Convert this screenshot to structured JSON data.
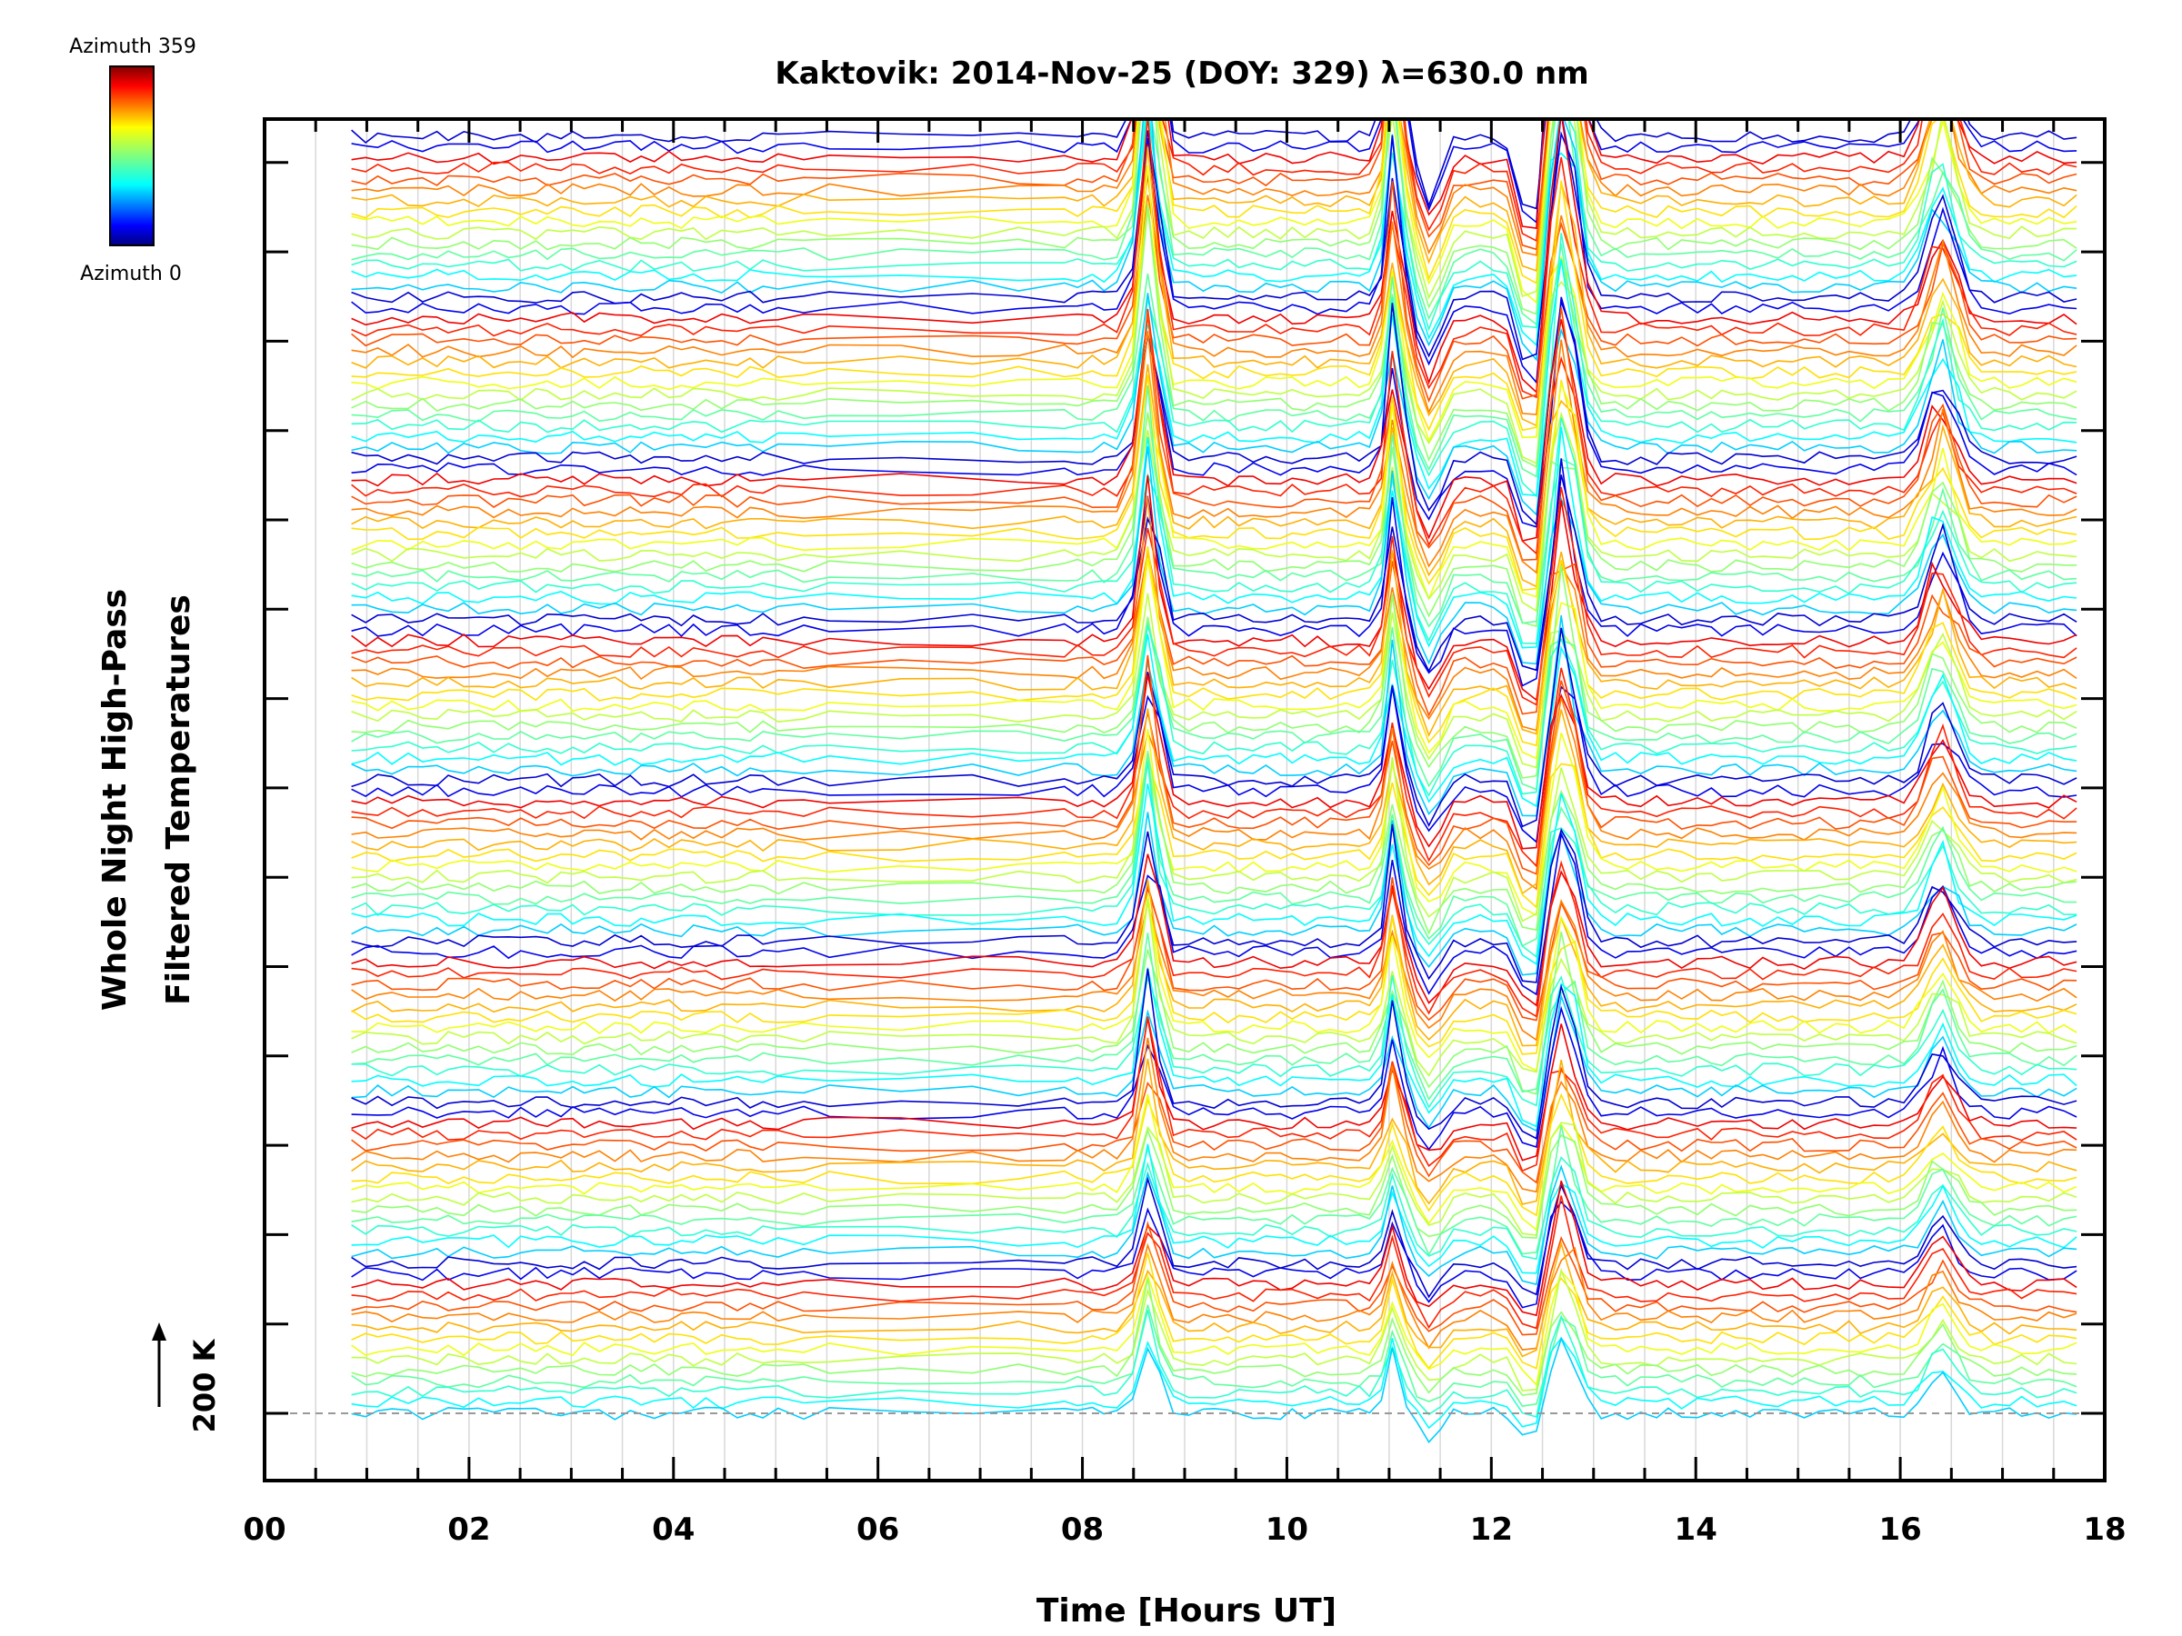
{
  "chart_data": {
    "type": "line",
    "title": "Kaktovik: 2014-Nov-25 (DOY: 329) λ=630.0 nm",
    "xlabel": "Time [Hours UT]",
    "ylabel_line1": "Whole Night High-Pass",
    "ylabel_line2": "Filtered Temperatures",
    "xlim": [
      0,
      18
    ],
    "x_ticks": [
      "00",
      "02",
      "04",
      "06",
      "08",
      "10",
      "12",
      "14",
      "16",
      "18"
    ],
    "minor_tick_step_hours": 0.5,
    "data_time_range_hours": [
      0.85,
      17.85
    ],
    "y_scale_bar": "200 K",
    "baseline_dashed": true,
    "vertical_gridlines_every_hours": 0.5,
    "colorbar": {
      "top_label": "Azimuth 359",
      "bottom_label": "Azimuth 0",
      "colormap": "jet",
      "min_azimuth": 0,
      "max_azimuth": 359
    },
    "series_count": 120,
    "bands_count": 8,
    "event_peaks_hours": [
      8.65,
      11.05,
      12.7,
      16.4
    ],
    "trough_hours": [
      12.4
    ],
    "plot_bg": "#ffffff",
    "axis_color": "#000000"
  }
}
